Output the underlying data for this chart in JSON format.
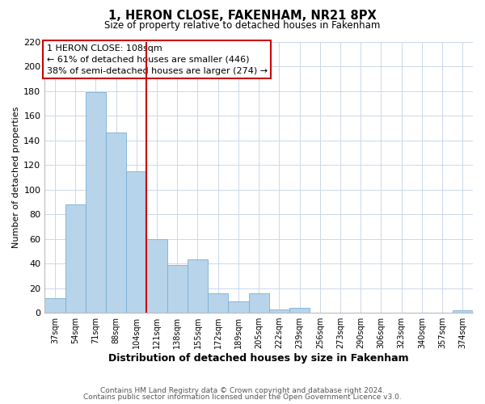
{
  "title": "1, HERON CLOSE, FAKENHAM, NR21 8PX",
  "subtitle": "Size of property relative to detached houses in Fakenham",
  "xlabel": "Distribution of detached houses by size in Fakenham",
  "ylabel": "Number of detached properties",
  "bar_labels": [
    "37sqm",
    "54sqm",
    "71sqm",
    "88sqm",
    "104sqm",
    "121sqm",
    "138sqm",
    "155sqm",
    "172sqm",
    "189sqm",
    "205sqm",
    "222sqm",
    "239sqm",
    "256sqm",
    "273sqm",
    "290sqm",
    "306sqm",
    "323sqm",
    "340sqm",
    "357sqm",
    "374sqm"
  ],
  "bar_values": [
    12,
    88,
    179,
    146,
    115,
    60,
    39,
    43,
    16,
    9,
    16,
    3,
    4,
    0,
    0,
    0,
    0,
    0,
    0,
    0,
    2
  ],
  "bar_color": "#b8d4ea",
  "bar_edge_color": "#7aafd4",
  "vline_color": "#cc0000",
  "ylim": [
    0,
    220
  ],
  "yticks": [
    0,
    20,
    40,
    60,
    80,
    100,
    120,
    140,
    160,
    180,
    200,
    220
  ],
  "annotation_title": "1 HERON CLOSE: 108sqm",
  "annotation_line1": "← 61% of detached houses are smaller (446)",
  "annotation_line2": "38% of semi-detached houses are larger (274) →",
  "annotation_box_color": "#ffffff",
  "annotation_box_edge": "#cc0000",
  "footer_line1": "Contains HM Land Registry data © Crown copyright and database right 2024.",
  "footer_line2": "Contains public sector information licensed under the Open Government Licence v3.0.",
  "background_color": "#ffffff",
  "grid_color": "#ccd8e8"
}
